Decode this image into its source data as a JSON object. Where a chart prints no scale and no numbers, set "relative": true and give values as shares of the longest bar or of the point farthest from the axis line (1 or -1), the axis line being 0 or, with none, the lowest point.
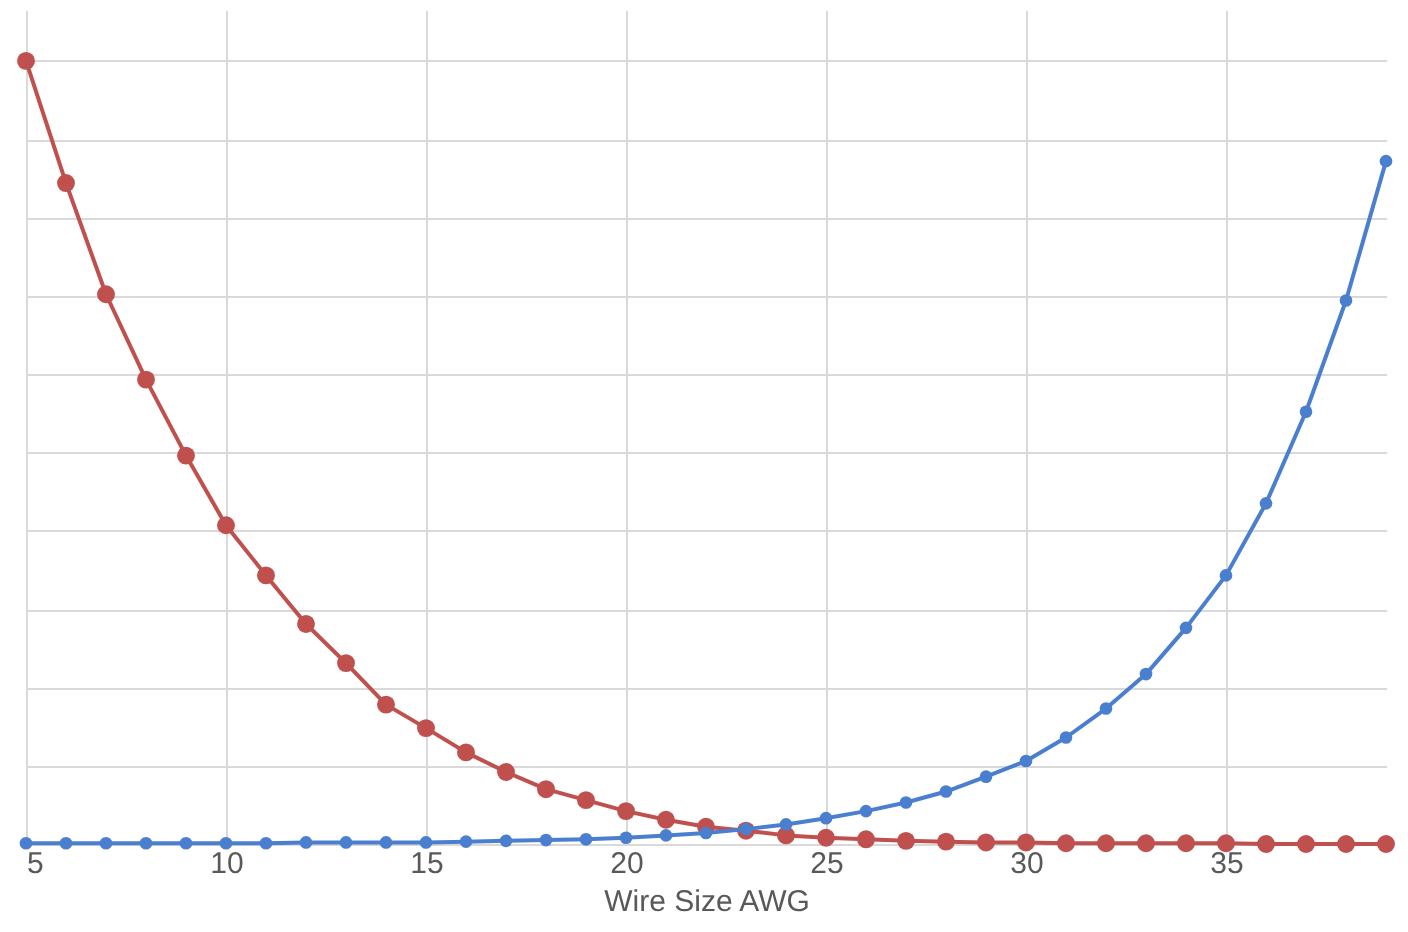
{
  "chart_data": {
    "type": "line",
    "relative": true,
    "xlabel": "Wire Size AWG",
    "x": [
      5,
      6,
      7,
      8,
      9,
      10,
      11,
      12,
      13,
      14,
      15,
      16,
      17,
      18,
      19,
      20,
      21,
      22,
      23,
      24,
      25,
      26,
      27,
      28,
      29,
      30,
      31,
      32,
      33,
      34,
      35,
      36,
      37,
      38,
      39
    ],
    "series": [
      {
        "color": "#c0504d",
        "values": [
          1,
          0.844,
          0.702,
          0.593,
          0.496,
          0.407,
          0.343,
          0.281,
          0.231,
          0.178,
          0.148,
          0.117,
          0.092,
          0.07,
          0.056,
          0.042,
          0.031,
          0.022,
          0.017,
          0.011,
          0.008,
          0.006,
          0.004,
          0.003,
          0.002,
          0.002,
          0.001,
          0.001,
          0.001,
          0.001,
          0.001,
          0,
          0,
          0,
          0
        ]
      },
      {
        "color": "#4a7fcf",
        "values": [
          0.001,
          0.001,
          0.001,
          0.001,
          0.001,
          0.001,
          0.001,
          0.002,
          0.002,
          0.002,
          0.002,
          0.003,
          0.004,
          0.005,
          0.006,
          0.008,
          0.011,
          0.014,
          0.019,
          0.025,
          0.033,
          0.042,
          0.053,
          0.067,
          0.086,
          0.106,
          0.136,
          0.173,
          0.217,
          0.276,
          0.343,
          0.435,
          0.552,
          0.694,
          0.872
        ]
      }
    ],
    "xlim": [
      5,
      39
    ],
    "xticks": [
      5,
      10,
      15,
      20,
      25,
      30,
      35
    ],
    "grid": true,
    "marker": "circle",
    "line_style": "solid"
  }
}
